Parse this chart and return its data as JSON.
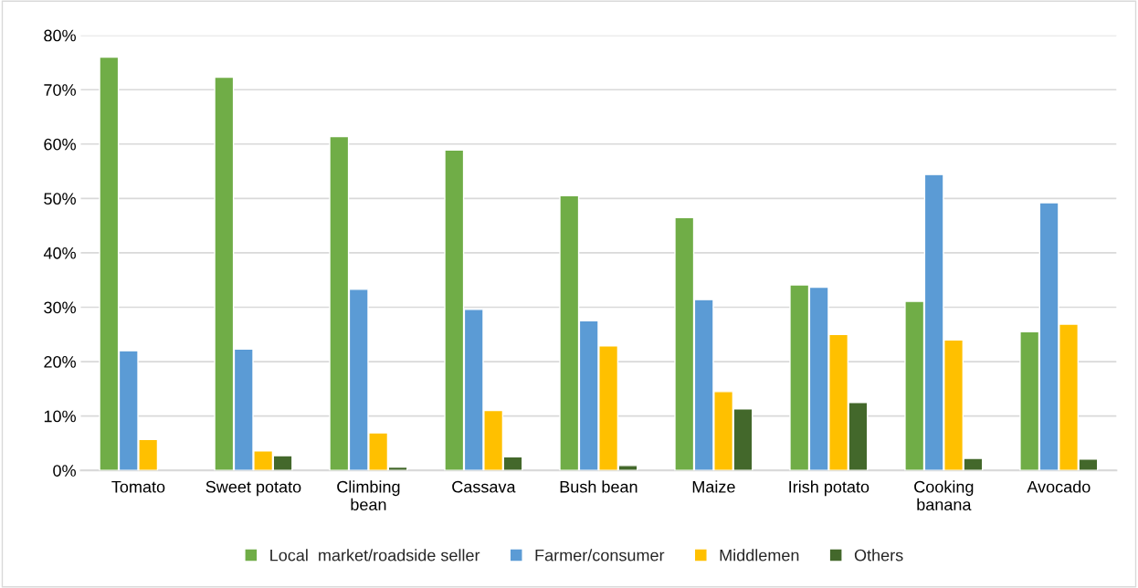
{
  "chart_data": {
    "type": "bar",
    "categories": [
      "Tomato",
      "Sweet potato",
      "Climbing bean",
      "Cassava",
      "Bush bean",
      "Maize",
      "Irish potato",
      "Cooking banana",
      "Avocado"
    ],
    "series": [
      {
        "name": "Local  market/roadside seller",
        "color": "#70ad47",
        "values": [
          76.0,
          72.3,
          61.4,
          58.9,
          50.5,
          46.5,
          34.1,
          31.1,
          25.5
        ]
      },
      {
        "name": "Farmer/consumer",
        "color": "#5b9bd5",
        "values": [
          22.0,
          22.3,
          33.3,
          29.6,
          27.5,
          31.4,
          33.7,
          54.4,
          49.2
        ]
      },
      {
        "name": "Middlemen",
        "color": "#ffc000",
        "values": [
          5.7,
          3.6,
          6.9,
          11.0,
          22.9,
          14.5,
          25.0,
          24.0,
          26.9
        ]
      },
      {
        "name": "Others",
        "color": "#43682b",
        "values": [
          null,
          2.7,
          0.6,
          2.5,
          0.9,
          11.3,
          12.5,
          2.2,
          2.1
        ]
      }
    ],
    "ylim": [
      0,
      80
    ],
    "yticks": [
      {
        "value": 0,
        "label": "0%"
      },
      {
        "value": 10,
        "label": "10%"
      },
      {
        "value": 20,
        "label": "20%"
      },
      {
        "value": 30,
        "label": "30%"
      },
      {
        "value": 40,
        "label": "40%"
      },
      {
        "value": 50,
        "label": "50%"
      },
      {
        "value": 60,
        "label": "60%"
      },
      {
        "value": 70,
        "label": "70%"
      },
      {
        "value": 80,
        "label": "80%"
      }
    ],
    "grid": "y",
    "legend": "bottom"
  }
}
